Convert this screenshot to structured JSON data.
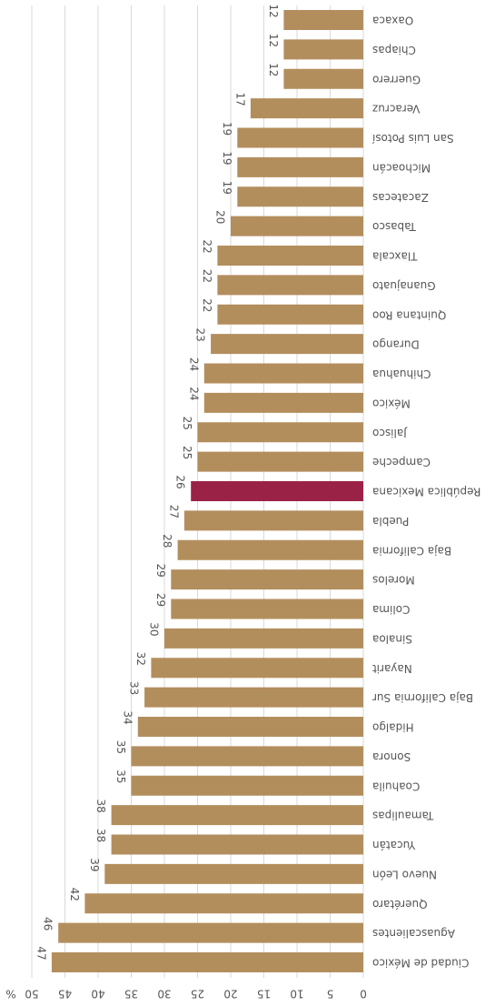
{
  "chart_data": {
    "type": "bar",
    "orientation": "horizontal",
    "y_label": "%",
    "categories": [
      "Oaxaca",
      "Chiapas",
      "Guerrero",
      "Veracruz",
      "San Luis Potosí",
      "Michoacán",
      "Zacatecas",
      "Tabasco",
      "Tlaxcala",
      "Guanajuato",
      "Quintana Roo",
      "Durango",
      "Chihuahua",
      "México",
      "Jalisco",
      "Campeche",
      "República Mexicana",
      "Puebla",
      "Baja California",
      "Morelos",
      "Colima",
      "Sinaloa",
      "Nayarit",
      "Baja California Sur",
      "Hidalgo",
      "Sonora",
      "Coahuila",
      "Tamaulipas",
      "Yucatán",
      "Nuevo León",
      "Querétaro",
      "Aguascalientes",
      "Ciudad de México"
    ],
    "values": [
      12,
      12,
      12,
      17,
      19,
      19,
      19,
      20,
      22,
      22,
      22,
      23,
      24,
      24,
      25,
      25,
      26,
      27,
      28,
      29,
      29,
      30,
      32,
      33,
      34,
      35,
      35,
      38,
      38,
      39,
      42,
      46,
      47
    ],
    "colors": [
      "#b38e5d",
      "#b38e5d",
      "#b38e5d",
      "#b38e5d",
      "#b38e5d",
      "#b38e5d",
      "#b38e5d",
      "#b38e5d",
      "#b38e5d",
      "#b38e5d",
      "#b38e5d",
      "#b38e5d",
      "#b38e5d",
      "#b38e5d",
      "#b38e5d",
      "#b38e5d",
      "#9b2247",
      "#b38e5d",
      "#b38e5d",
      "#b38e5d",
      "#b38e5d",
      "#b38e5d",
      "#b38e5d",
      "#b38e5d",
      "#b38e5d",
      "#b38e5d",
      "#b38e5d",
      "#b38e5d",
      "#b38e5d",
      "#b38e5d",
      "#b38e5d",
      "#b38e5d",
      "#b38e5d"
    ],
    "ylim": [
      0,
      50
    ],
    "yticks": [
      0,
      5,
      10,
      15,
      20,
      25,
      30,
      35,
      40,
      45,
      50
    ],
    "grid": true
  }
}
